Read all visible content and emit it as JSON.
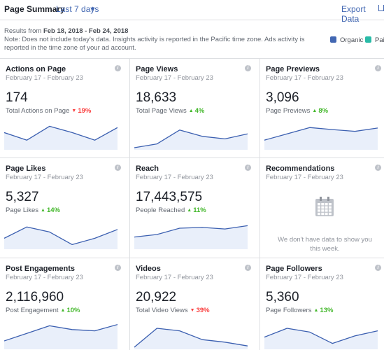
{
  "header": {
    "title": "Page Summary",
    "range": "Last 7 days",
    "export": "Export Data"
  },
  "info": {
    "prefix": "Results from",
    "dates": "Feb 18, 2018 - Feb 24, 2018",
    "note": "Note: Does not include today's data. Insights activity is reported in the Pacific time zone. Ads activity is reported in the time zone of your ad account."
  },
  "legend": [
    {
      "name": "Organic",
      "color": "#4267b2"
    },
    {
      "name": "Paid",
      "color": "#2abba7"
    }
  ],
  "cards": [
    {
      "title": "Actions on Page",
      "dates": "February 17 - February 23",
      "value": "174",
      "label": "Total Actions on Page",
      "change": "19%",
      "trend": "down",
      "sparkline": [
        60,
        30,
        85,
        60,
        30,
        80
      ]
    },
    {
      "title": "Page Views",
      "dates": "February 17 - February 23",
      "value": "18,633",
      "label": "Total Page Views",
      "change": "4%",
      "trend": "up",
      "sparkline": [
        0,
        15,
        70,
        45,
        35,
        55
      ]
    },
    {
      "title": "Page Previews",
      "dates": "February 17 - February 23",
      "value": "3,096",
      "label": "Page Previews",
      "change": "8%",
      "trend": "up",
      "sparkline": [
        30,
        55,
        80,
        72,
        65,
        78
      ]
    },
    {
      "title": "Page Likes",
      "dates": "February 17 - February 23",
      "value": "5,327",
      "label": "Page Likes",
      "change": "14%",
      "trend": "up",
      "sparkline": [
        35,
        80,
        60,
        10,
        35,
        70
      ]
    },
    {
      "title": "Reach",
      "dates": "February 17 - February 23",
      "value": "17,443,575",
      "label": "People Reached",
      "change": "11%",
      "trend": "up",
      "sparkline": [
        40,
        50,
        75,
        78,
        72,
        85
      ]
    },
    {
      "title": "Recommendations",
      "dates": "February 17 - February 23",
      "empty": "We don't have data to show you this week."
    },
    {
      "title": "Post Engagements",
      "dates": "February 17 - February 23",
      "value": "2,116,960",
      "label": "Post Engagement",
      "change": "10%",
      "trend": "up",
      "sparkline": [
        25,
        55,
        85,
        70,
        65,
        90
      ]
    },
    {
      "title": "Videos",
      "dates": "February 17 - February 23",
      "value": "20,922",
      "label": "Total Video Views",
      "change": "39%",
      "trend": "down",
      "sparkline": [
        0,
        75,
        65,
        30,
        20,
        5
      ]
    },
    {
      "title": "Page Followers",
      "dates": "February 17 - February 23",
      "value": "5,360",
      "label": "Page Followers",
      "change": "13%",
      "trend": "up",
      "sparkline": [
        40,
        75,
        60,
        15,
        45,
        65
      ]
    }
  ]
}
